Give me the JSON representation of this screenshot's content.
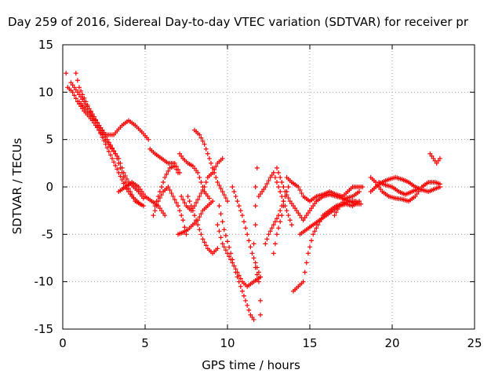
{
  "chart_data": {
    "type": "scatter",
    "title": "Day 259 of 2016, Sidereal Day-to-day VTEC variation (SDTVAR) for receiver pr",
    "xlabel": "GPS time / hours",
    "ylabel": "SDTVAR / TECUs",
    "xlim": [
      0,
      25
    ],
    "ylim": [
      -15,
      15
    ],
    "xticks": [
      "0",
      "5",
      "10",
      "15",
      "20",
      "25"
    ],
    "yticks": [
      "15",
      "10",
      "5",
      "0",
      "-5",
      "-10",
      "-15"
    ],
    "grid": true,
    "marker": "+",
    "marker_color": "#ff0000",
    "segments": [
      [
        [
          0.2,
          12
        ],
        [
          0.3,
          10.5
        ],
        [
          0.6,
          10
        ],
        [
          0.9,
          9
        ],
        [
          1.3,
          8
        ],
        [
          1.8,
          7
        ],
        [
          2.2,
          6
        ],
        [
          2.6,
          4.5
        ],
        [
          3,
          3
        ],
        [
          3.4,
          1.5
        ],
        [
          3.8,
          0
        ],
        [
          4.2,
          -1
        ],
        [
          4.7,
          -1.8
        ]
      ],
      [
        [
          0.8,
          12
        ],
        [
          1.0,
          10.5
        ],
        [
          1.4,
          9
        ],
        [
          1.8,
          7.5
        ],
        [
          2.2,
          6
        ],
        [
          2.6,
          5
        ],
        [
          3.0,
          4
        ],
        [
          3.4,
          3
        ],
        [
          3.7,
          1.5
        ],
        [
          4.0,
          0.5
        ],
        [
          4.3,
          0
        ],
        [
          4.6,
          -0.5
        ],
        [
          4.9,
          -1.2
        ]
      ],
      [
        [
          0.5,
          11
        ],
        [
          0.9,
          10
        ],
        [
          1.3,
          9
        ],
        [
          1.7,
          8
        ],
        [
          2.2,
          6.5
        ],
        [
          2.7,
          5
        ],
        [
          3.2,
          3.5
        ],
        [
          3.5,
          2
        ],
        [
          3.8,
          0.5
        ],
        [
          4.1,
          -0.5
        ],
        [
          4.4,
          -1.5
        ],
        [
          4.9,
          -2
        ]
      ],
      [
        [
          1.0,
          9
        ],
        [
          1.5,
          8
        ],
        [
          2.0,
          7
        ],
        [
          2.6,
          5.5
        ],
        [
          3.1,
          5.5
        ],
        [
          3.6,
          6.5
        ],
        [
          4.0,
          7
        ],
        [
          4.4,
          6.5
        ],
        [
          4.8,
          5.8
        ],
        [
          5.2,
          5
        ]
      ],
      [
        [
          3.4,
          -0.5
        ],
        [
          3.8,
          0
        ],
        [
          4.2,
          0.5
        ],
        [
          4.6,
          0
        ],
        [
          5.0,
          -1
        ],
        [
          5.4,
          -1.5
        ],
        [
          5.8,
          -2
        ],
        [
          6.2,
          -3
        ]
      ],
      [
        [
          5.3,
          4
        ],
        [
          5.6,
          3.5
        ],
        [
          6.0,
          3
        ],
        [
          6.4,
          2.5
        ],
        [
          6.8,
          2.5
        ],
        [
          7.1,
          1.5
        ]
      ],
      [
        [
          5.6,
          -2
        ],
        [
          5.9,
          -0.5
        ],
        [
          6.2,
          1
        ],
        [
          6.5,
          2
        ],
        [
          6.8,
          2.2
        ],
        [
          7.0,
          1.5
        ]
      ],
      [
        [
          5.5,
          -3
        ],
        [
          5.8,
          -1.5
        ],
        [
          6.1,
          -0.5
        ],
        [
          6.4,
          0
        ],
        [
          6.7,
          -1
        ],
        [
          7.0,
          -2
        ],
        [
          7.3,
          -3.5
        ],
        [
          7.5,
          -5
        ]
      ],
      [
        [
          7.1,
          3.5
        ],
        [
          7.3,
          3
        ],
        [
          7.6,
          2.5
        ],
        [
          7.9,
          2.2
        ],
        [
          8.2,
          1.5
        ],
        [
          8.4,
          0.5
        ],
        [
          8.6,
          -0.5
        ],
        [
          8.9,
          -1.2
        ]
      ],
      [
        [
          7.0,
          -5
        ],
        [
          7.3,
          -4.8
        ],
        [
          7.6,
          -4.5
        ],
        [
          7.9,
          -4
        ],
        [
          8.2,
          -3.5
        ],
        [
          8.5,
          -2.5
        ],
        [
          8.8,
          -2
        ],
        [
          9.1,
          -1.5
        ]
      ],
      [
        [
          7.2,
          -1
        ],
        [
          7.5,
          -2
        ],
        [
          7.8,
          -2.5
        ],
        [
          8.0,
          -2
        ],
        [
          8.3,
          -1
        ],
        [
          8.6,
          0
        ],
        [
          8.8,
          1
        ],
        [
          9.1,
          1.5
        ],
        [
          9.4,
          2.5
        ],
        [
          9.7,
          3
        ]
      ],
      [
        [
          8.0,
          6
        ],
        [
          8.3,
          5.5
        ],
        [
          8.6,
          4.5
        ],
        [
          8.9,
          3
        ],
        [
          9.1,
          2
        ],
        [
          9.4,
          0.5
        ],
        [
          9.7,
          -0.5
        ],
        [
          10.0,
          -1.5
        ]
      ],
      [
        [
          7.6,
          -1
        ],
        [
          7.9,
          -2.5
        ],
        [
          8.2,
          -4
        ],
        [
          8.5,
          -5.5
        ],
        [
          8.8,
          -6.5
        ],
        [
          9.1,
          -7
        ],
        [
          9.4,
          -6.5
        ]
      ],
      [
        [
          9.5,
          -2
        ],
        [
          9.8,
          -4.5
        ],
        [
          10.2,
          -7
        ],
        [
          10.5,
          -9
        ],
        [
          10.8,
          -10.5
        ],
        [
          11.1,
          -12
        ],
        [
          11.4,
          -13.5
        ],
        [
          11.6,
          -14
        ]
      ],
      [
        [
          9.4,
          -4
        ],
        [
          9.7,
          -6
        ],
        [
          10.0,
          -7
        ],
        [
          10.3,
          -8
        ],
        [
          10.6,
          -9
        ],
        [
          10.9,
          -10
        ],
        [
          11.2,
          -10.5
        ],
        [
          11.6,
          -10
        ],
        [
          12.0,
          -9.5
        ]
      ],
      [
        [
          10.3,
          0
        ],
        [
          10.6,
          -1.5
        ],
        [
          10.9,
          -3
        ],
        [
          11.2,
          -5
        ],
        [
          11.5,
          -7
        ],
        [
          11.8,
          -8.5
        ],
        [
          12.0,
          -9.5
        ]
      ],
      [
        [
          11.6,
          -6
        ],
        [
          11.7,
          -8.5
        ],
        [
          11.9,
          -10
        ],
        [
          12.0,
          -12
        ],
        [
          12.0,
          -13.5
        ]
      ],
      [
        [
          11.7,
          -4
        ],
        [
          11.7,
          -2
        ],
        [
          11.7,
          0
        ],
        [
          11.8,
          2
        ]
      ],
      [
        [
          11.9,
          -1
        ],
        [
          12.1,
          -0.5
        ],
        [
          12.3,
          0
        ],
        [
          12.6,
          1
        ],
        [
          12.8,
          1.5
        ],
        [
          13.0,
          0.5
        ],
        [
          13.3,
          -1
        ],
        [
          13.6,
          -2.5
        ],
        [
          13.9,
          -4
        ]
      ],
      [
        [
          12.3,
          -6
        ],
        [
          12.5,
          -5
        ],
        [
          12.8,
          -4
        ],
        [
          13.1,
          -3
        ],
        [
          13.4,
          -1.5
        ]
      ],
      [
        [
          12.8,
          -7
        ],
        [
          13.0,
          -5
        ],
        [
          13.3,
          -3
        ],
        [
          13.5,
          -1
        ],
        [
          13.7,
          0
        ]
      ],
      [
        [
          13.0,
          2
        ],
        [
          13.2,
          1
        ],
        [
          13.5,
          -0.5
        ],
        [
          13.8,
          -1.5
        ],
        [
          14.2,
          -2.5
        ],
        [
          14.6,
          -3.5
        ],
        [
          15.0,
          -2.5
        ],
        [
          15.4,
          -1.5
        ],
        [
          15.8,
          -1
        ],
        [
          16.2,
          -0.8
        ],
        [
          16.6,
          -1
        ],
        [
          17.0,
          -1.2
        ],
        [
          17.4,
          -1.5
        ],
        [
          17.8,
          -1.8
        ],
        [
          18.1,
          -1.8
        ]
      ],
      [
        [
          13.6,
          1
        ],
        [
          13.9,
          0.5
        ],
        [
          14.3,
          0
        ],
        [
          14.6,
          -1
        ],
        [
          15.0,
          -1.5
        ],
        [
          15.4,
          -1
        ],
        [
          15.8,
          -0.8
        ],
        [
          16.2,
          -0.5
        ],
        [
          16.6,
          -0.8
        ],
        [
          17.0,
          -1
        ],
        [
          17.3,
          -0.5
        ],
        [
          17.6,
          0
        ],
        [
          17.9,
          0
        ],
        [
          18.2,
          0
        ]
      ],
      [
        [
          14.0,
          -11
        ],
        [
          14.3,
          -10.5
        ],
        [
          14.6,
          -10
        ],
        [
          14.9,
          -7
        ],
        [
          15.2,
          -5
        ],
        [
          15.5,
          -4
        ],
        [
          15.8,
          -3
        ],
        [
          16.2,
          -2.5
        ],
        [
          16.6,
          -2
        ],
        [
          17.0,
          -1.8
        ],
        [
          17.4,
          -1.5
        ],
        [
          17.8,
          -1.5
        ]
      ],
      [
        [
          14.4,
          -5
        ],
        [
          14.8,
          -4.5
        ],
        [
          15.2,
          -4
        ],
        [
          15.6,
          -3.5
        ],
        [
          16.0,
          -3
        ],
        [
          16.4,
          -2.5
        ],
        [
          16.8,
          -2
        ],
        [
          17.2,
          -1.2
        ],
        [
          17.6,
          -1
        ],
        [
          18.0,
          -0.5
        ]
      ],
      [
        [
          16.5,
          -3
        ],
        [
          16.8,
          -2
        ],
        [
          17.2,
          -1.8
        ],
        [
          17.6,
          -2
        ],
        [
          18.0,
          -1.5
        ]
      ],
      [
        [
          18.7,
          -0.5
        ],
        [
          19.0,
          0
        ],
        [
          19.4,
          0.5
        ],
        [
          19.8,
          0.8
        ],
        [
          20.2,
          1
        ],
        [
          20.6,
          0.8
        ],
        [
          21.0,
          0.5
        ],
        [
          21.4,
          0
        ],
        [
          21.8,
          -0.3
        ],
        [
          22.2,
          -0.5
        ],
        [
          22.6,
          -0.2
        ],
        [
          22.9,
          0
        ]
      ],
      [
        [
          18.7,
          1
        ],
        [
          19.0,
          0.5
        ],
        [
          19.4,
          -0.5
        ],
        [
          19.8,
          -1
        ],
        [
          20.2,
          -1.2
        ],
        [
          20.6,
          -1.3
        ],
        [
          21.0,
          -1.5
        ],
        [
          21.4,
          -1
        ],
        [
          21.8,
          0
        ],
        [
          22.2,
          0.5
        ],
        [
          22.6,
          0.5
        ],
        [
          22.9,
          0.3
        ]
      ],
      [
        [
          19.2,
          0.5
        ],
        [
          19.6,
          0.2
        ],
        [
          20.0,
          0
        ],
        [
          20.4,
          -0.5
        ],
        [
          20.8,
          -0.8
        ],
        [
          21.2,
          -0.5
        ],
        [
          21.6,
          -0.2
        ]
      ],
      [
        [
          22.3,
          3.5
        ],
        [
          22.5,
          3
        ],
        [
          22.7,
          2.5
        ],
        [
          22.9,
          3
        ]
      ]
    ]
  },
  "colors": {
    "marker": "#ff0000",
    "grid": "#a0a0a0",
    "frame": "#000000",
    "background": "#ffffff"
  }
}
